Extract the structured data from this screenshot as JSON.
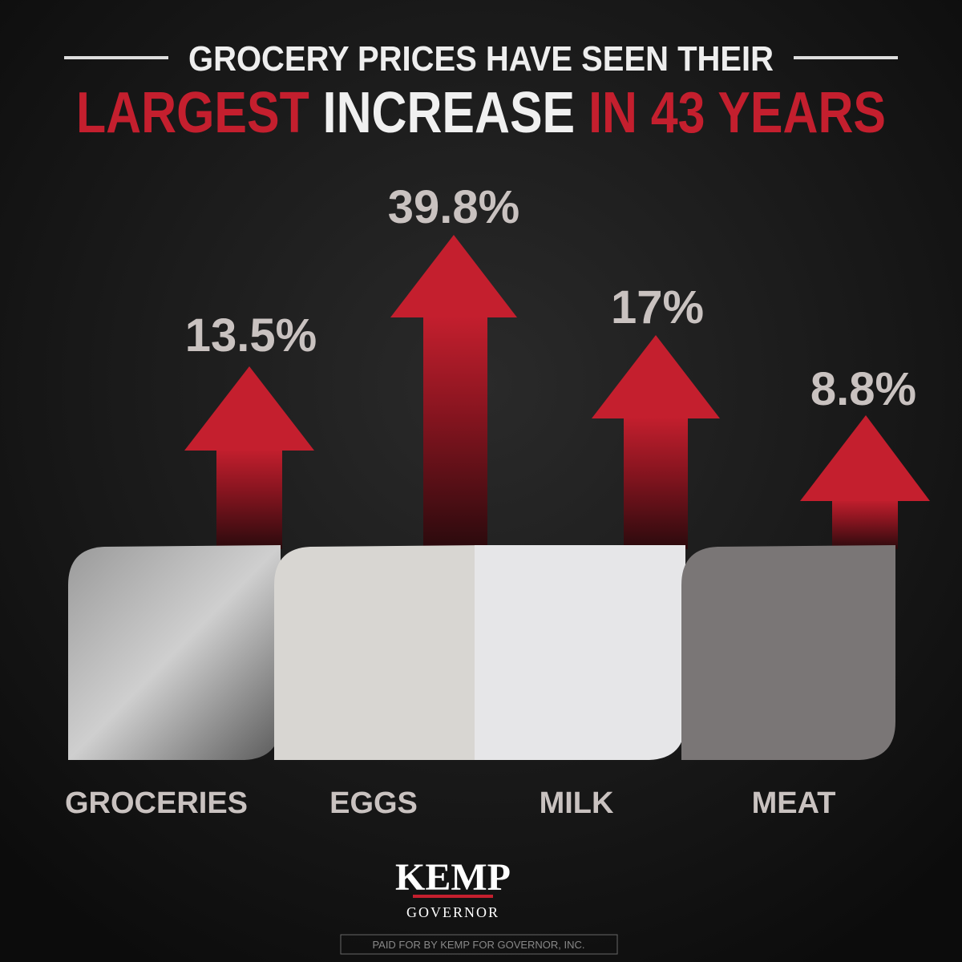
{
  "header": {
    "line1": "GROCERY PRICES HAVE SEEN THEIR",
    "line2a": "LARGEST",
    "line2b": "INCREASE",
    "line2c": "IN 43 YEARS"
  },
  "items": [
    {
      "label": "GROCERIES",
      "change": "13.5%"
    },
    {
      "label": "EGGS",
      "change": "39.8%"
    },
    {
      "label": "MILK",
      "change": "17%"
    },
    {
      "label": "MEAT",
      "change": "8.8%"
    }
  ],
  "logo": {
    "name": "KEMP",
    "office": "GOVERNOR"
  },
  "footer": "PAID FOR BY KEMP FOR GOVERNOR, INC."
}
